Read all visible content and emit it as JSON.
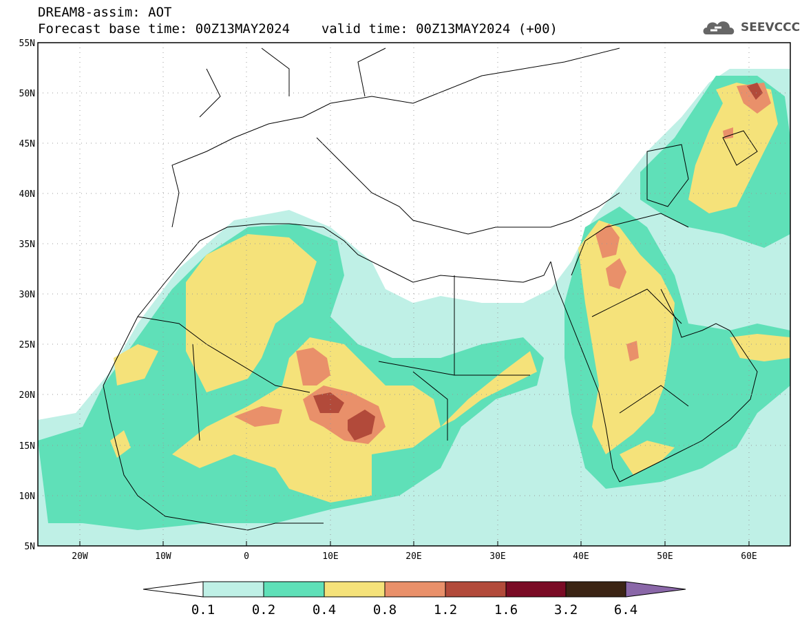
{
  "header": {
    "title": "DREAM8-assim: AOT",
    "base_time_label": "Forecast base time: 00Z13MAY2024",
    "valid_time_label": "valid time: 00Z13MAY2024 (+00)"
  },
  "logo": {
    "text": "SEEVCCC",
    "icon": "cloud-icon"
  },
  "map": {
    "lon_range": [
      -25,
      65
    ],
    "lat_range": [
      5,
      55
    ],
    "x_ticks": [
      "20W",
      "10W",
      "0",
      "10E",
      "20E",
      "30E",
      "40E",
      "50E",
      "60E"
    ],
    "y_ticks": [
      "55N",
      "50N",
      "45N",
      "40N",
      "35N",
      "30N",
      "25N",
      "20N",
      "15N",
      "10N",
      "5N"
    ]
  },
  "colorbar": {
    "labels": [
      "0.1",
      "0.2",
      "0.4",
      "0.8",
      "1.2",
      "1.6",
      "3.2",
      "6.4"
    ],
    "colors": [
      "#ffffff",
      "#bff0e6",
      "#5fe0b8",
      "#f5e27a",
      "#e9906a",
      "#b24a3a",
      "#7a0b25",
      "#3b2414",
      "#8a67a8"
    ]
  }
}
